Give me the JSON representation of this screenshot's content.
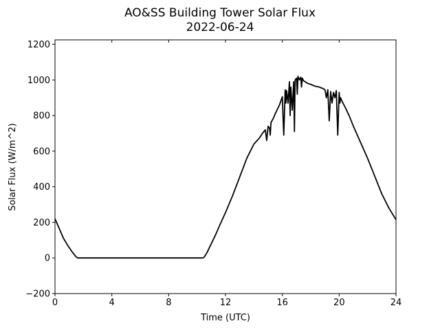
{
  "chart_data": {
    "type": "line",
    "title": "AO&SS Building Tower Solar Flux",
    "subtitle": "2022-06-24",
    "xlabel": "Time (UTC)",
    "ylabel": "Solar Flux (W/m^2)",
    "xlim": [
      0,
      24
    ],
    "ylim": [
      -200,
      1225
    ],
    "xticks": [
      0,
      4,
      8,
      12,
      16,
      20,
      24
    ],
    "yticks": [
      -200,
      0,
      200,
      400,
      600,
      800,
      1000,
      1200
    ],
    "grid": false,
    "legend": "none",
    "series": [
      {
        "color": "#000000",
        "x": [
          0,
          0.3,
          0.6,
          0.9,
          1.2,
          1.5,
          1.6,
          1.7,
          2.0,
          4.0,
          6.0,
          8.0,
          10.0,
          10.4,
          10.5,
          10.7,
          11.0,
          11.3,
          11.6,
          12.0,
          12.5,
          13.0,
          13.5,
          14.0,
          14.4,
          14.6,
          14.8,
          14.9,
          15.0,
          15.1,
          15.15,
          15.2,
          15.3,
          15.4,
          15.5,
          15.8,
          16.0,
          16.1,
          16.2,
          16.25,
          16.3,
          16.4,
          16.5,
          16.55,
          16.6,
          16.7,
          16.8,
          16.85,
          16.9,
          17.0,
          17.05,
          17.1,
          17.2,
          17.3,
          17.35,
          17.4,
          17.5,
          17.6,
          17.7,
          17.8,
          18.0,
          18.3,
          18.6,
          18.9,
          19.0,
          19.1,
          19.2,
          19.3,
          19.4,
          19.5,
          19.6,
          19.7,
          19.8,
          19.9,
          20.0,
          20.05,
          20.1,
          20.2,
          20.4,
          20.7,
          21.0,
          21.5,
          22.0,
          22.5,
          23.0,
          23.5,
          24.0
        ],
        "y": [
          220,
          165,
          110,
          70,
          35,
          5,
          0,
          0,
          0,
          0,
          0,
          0,
          0,
          0,
          5,
          30,
          80,
          130,
          185,
          255,
          350,
          455,
          560,
          640,
          675,
          700,
          720,
          660,
          740,
          730,
          690,
          760,
          775,
          790,
          810,
          860,
          905,
          690,
          945,
          870,
          940,
          870,
          990,
          800,
          960,
          830,
          990,
          710,
          1000,
          1010,
          920,
          1020,
          1000,
          1015,
          960,
          1010,
          995,
          990,
          985,
          980,
          975,
          965,
          960,
          950,
          945,
          900,
          945,
          770,
          935,
          870,
          930,
          900,
          940,
          690,
          930,
          870,
          900,
          880,
          850,
          800,
          740,
          650,
          560,
          460,
          360,
          280,
          215
        ]
      }
    ]
  }
}
